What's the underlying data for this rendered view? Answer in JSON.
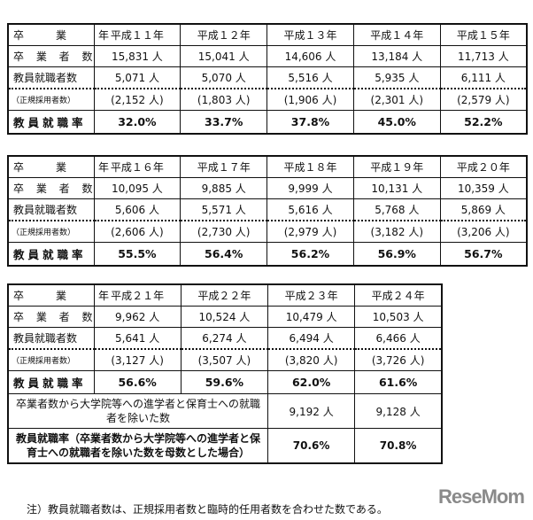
{
  "row_labels": {
    "year": "卒　業　年",
    "graduates": "卒 業 者 数",
    "teachers": "教員就職者数",
    "regular": "（正規採用者数）",
    "rate": "教員就職率"
  },
  "tables": [
    {
      "years": [
        "平成１１年",
        "平成１２年",
        "平成１３年",
        "平成１４年",
        "平成１５年"
      ],
      "graduates": [
        "15,831 人",
        "15,041 人",
        "14,606 人",
        "13,184 人",
        "11,713 人"
      ],
      "teachers": [
        "5,071 人",
        "5,070 人",
        "5,516 人",
        "5,935 人",
        "6,111 人"
      ],
      "regular": [
        "(2,152 人)",
        "(1,803 人)",
        "(1,906 人)",
        "(2,301 人)",
        "(2,579 人)"
      ],
      "rate": [
        "32.0%",
        "33.7%",
        "37.8%",
        "45.0%",
        "52.2%"
      ]
    },
    {
      "years": [
        "平成１６年",
        "平成１７年",
        "平成１８年",
        "平成１９年",
        "平成２０年"
      ],
      "graduates": [
        "10,095 人",
        "9,885 人",
        "9,999 人",
        "10,131 人",
        "10,359 人"
      ],
      "teachers": [
        "5,606 人",
        "5,571 人",
        "5,616 人",
        "5,768 人",
        "5,869 人"
      ],
      "regular": [
        "(2,606 人)",
        "(2,730 人)",
        "(2,979 人)",
        "(3,182 人)",
        "(3,206 人)"
      ],
      "rate": [
        "55.5%",
        "56.4%",
        "56.2%",
        "56.9%",
        "56.7%"
      ]
    },
    {
      "years": [
        "平成２１年",
        "平成２２年",
        "平成２３年",
        "平成２４年"
      ],
      "graduates": [
        "9,962 人",
        "10,524 人",
        "10,479 人",
        "10,503 人"
      ],
      "teachers": [
        "5,641 人",
        "6,274 人",
        "6,494 人",
        "6,466 人"
      ],
      "regular": [
        "(3,127 人)",
        "(3,507 人)",
        "(3,820 人)",
        "(3,726 人)"
      ],
      "rate": [
        "56.6%",
        "59.6%",
        "62.0%",
        "61.6%"
      ]
    }
  ],
  "extra": {
    "adjusted_label": "卒業者数から大学院等への進学者と保育士への就職者を除いた数",
    "adjusted_values": [
      "9,192 人",
      "9,128 人"
    ],
    "adjusted_rate_label": "教員就職率（卒業者数から大学院等への進学者と保育士への就職者を除いた数を母数とした場合）",
    "adjusted_rate_values": [
      "70.6%",
      "70.8%"
    ]
  },
  "note": "注）教員就職者数は、正規採用者数と臨時的任用者数を合わせた数である。",
  "watermark": "ReseMom"
}
